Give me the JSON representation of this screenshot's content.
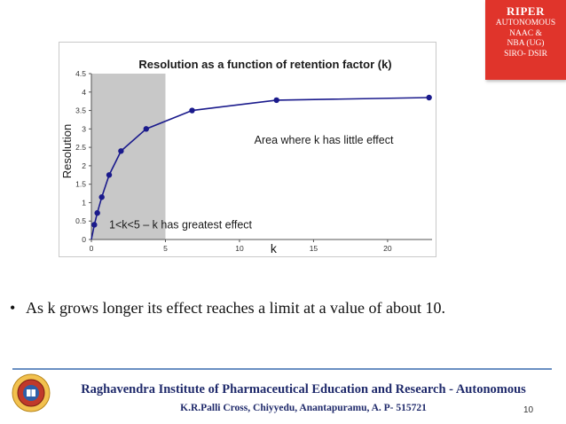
{
  "badge": {
    "title": "RIPER",
    "lines": [
      "AUTONOMOUS",
      "NAAC &",
      "NBA (UG)",
      "SIRO- DSIR"
    ]
  },
  "chart_data": {
    "type": "line",
    "title": "Resolution as a function of retention factor (k)",
    "xlabel": "k",
    "ylabel": "Resolution",
    "xlim": [
      0,
      23
    ],
    "ylim": [
      0,
      4.5
    ],
    "x_ticks": [
      0,
      5,
      10,
      15,
      20
    ],
    "y_ticks": [
      0,
      0.5,
      1,
      1.5,
      2,
      2.5,
      3,
      3.5,
      4,
      4.5
    ],
    "series": [
      {
        "x": [
          0.2,
          0.4,
          0.7,
          1.2,
          2.0,
          3.7,
          6.8,
          12.5,
          22.8
        ],
        "y": [
          0.4,
          0.72,
          1.15,
          1.75,
          2.4,
          3.0,
          3.5,
          3.78,
          3.85
        ]
      }
    ],
    "shaded_region": {
      "x_range": [
        0,
        5
      ],
      "color": "#c8c8c8"
    },
    "annotations": [
      {
        "text": "Area where k  has little effect",
        "x": 11,
        "y": 2.6
      },
      {
        "text": "1<k<5 – k  has greatest effect",
        "x": 1.2,
        "y": 0.3
      }
    ],
    "grid": false,
    "line_color": "#1a1a8c",
    "point_color": "#1a1a8c"
  },
  "bullet": {
    "symbol": "•",
    "text": "As k grows longer its effect reaches a limit at a value of about 10."
  },
  "footer": {
    "title": "Raghavendra Institute of Pharmaceutical Education and Research - Autonomous",
    "address": "K.R.Palli Cross, Chiyyedu, Anantapuramu, A. P- 515721",
    "page": "10"
  }
}
